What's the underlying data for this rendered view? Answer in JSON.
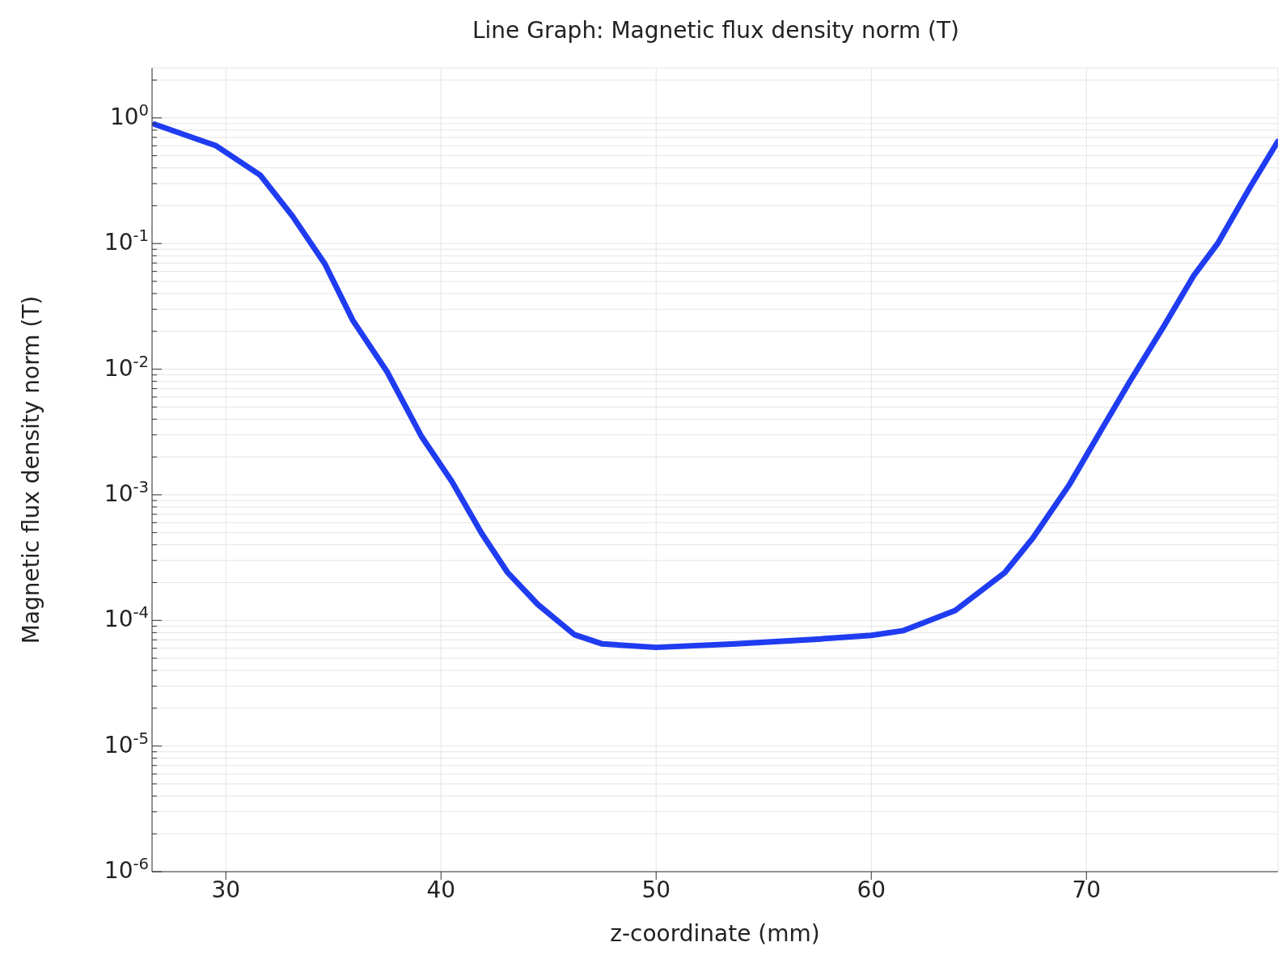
{
  "chart_data": {
    "type": "line",
    "title": "Line Graph: Magnetic flux density norm (T)",
    "xlabel": "z-coordinate (mm)",
    "ylabel": "Magnetic flux density norm (T)",
    "log": "y",
    "grid": true,
    "marker": "none",
    "line_style": "solid",
    "x": [
      26.7,
      29.55,
      31.6,
      33.1,
      34.6,
      35.9,
      37.5,
      39.1,
      40.5,
      41.9,
      43.1,
      44.5,
      46.2,
      47.5,
      50,
      53.7,
      57.5,
      60,
      61.5,
      63.9,
      66.2,
      67.5,
      69.2,
      70.7,
      72.0,
      73.6,
      75.0,
      76.1,
      77.6,
      78.9
    ],
    "series": [
      {
        "color": "#1f3cf0",
        "values": [
          0.89,
          0.6,
          0.35,
          0.165,
          0.069,
          0.0245,
          0.0095,
          0.0029,
          0.00128,
          0.00049,
          0.00024,
          0.000134,
          7.7e-05,
          6.5e-05,
          6.1e-05,
          6.5e-05,
          7.1e-05,
          7.6e-05,
          8.3e-05,
          0.00012,
          0.00024,
          0.00045,
          0.0012,
          0.0033,
          0.0079,
          0.022,
          0.056,
          0.1,
          0.28,
          0.65
        ]
      }
    ],
    "xlim": [
      26.57,
      78.9
    ],
    "xticks": [
      30,
      40,
      50,
      60,
      70
    ],
    "ylim": [
      1e-06,
      2.5
    ],
    "yticks": [
      {
        "value": 1e-06,
        "label": "10$^{-6}$"
      },
      {
        "value": 2e-06,
        "label": null
      },
      {
        "value": 3e-06,
        "label": null
      },
      {
        "value": 4e-06,
        "label": null
      },
      {
        "value": 5e-06,
        "label": null
      },
      {
        "value": 6e-06,
        "label": null
      },
      {
        "value": 7e-06,
        "label": null
      },
      {
        "value": 8e-06,
        "label": null
      },
      {
        "value": 9e-06,
        "label": null
      },
      {
        "value": 1e-05,
        "label": "10$^{-5}$"
      },
      {
        "value": 2e-05,
        "label": null
      },
      {
        "value": 3e-05,
        "label": null
      },
      {
        "value": 4e-05,
        "label": null
      },
      {
        "value": 5e-05,
        "label": null
      },
      {
        "value": 6e-05,
        "label": null
      },
      {
        "value": 7e-05,
        "label": null
      },
      {
        "value": 8e-05,
        "label": null
      },
      {
        "value": 9e-05,
        "label": null
      },
      {
        "value": 0.0001,
        "label": "10$^{-4}$"
      },
      {
        "value": 0.0002,
        "label": null
      },
      {
        "value": 0.0003,
        "label": null
      },
      {
        "value": 0.0004,
        "label": null
      },
      {
        "value": 0.0005,
        "label": null
      },
      {
        "value": 0.0006,
        "label": null
      },
      {
        "value": 0.0007,
        "label": null
      },
      {
        "value": 0.0008,
        "label": null
      },
      {
        "value": 0.0009,
        "label": null
      },
      {
        "value": 0.001,
        "label": "10$^{-3}$"
      },
      {
        "value": 0.002,
        "label": null
      },
      {
        "value": 0.003,
        "label": null
      },
      {
        "value": 0.004,
        "label": null
      },
      {
        "value": 0.005,
        "label": null
      },
      {
        "value": 0.006,
        "label": null
      },
      {
        "value": 0.007,
        "label": null
      },
      {
        "value": 0.008,
        "label": null
      },
      {
        "value": 0.009,
        "label": null
      },
      {
        "value": 0.01,
        "label": "10$^{-2}$"
      },
      {
        "value": 0.02,
        "label": null
      },
      {
        "value": 0.03,
        "label": null
      },
      {
        "value": 0.04,
        "label": null
      },
      {
        "value": 0.05,
        "label": null
      },
      {
        "value": 0.06,
        "label": null
      },
      {
        "value": 0.07,
        "label": null
      },
      {
        "value": 0.08,
        "label": null
      },
      {
        "value": 0.09,
        "label": null
      },
      {
        "value": 0.1,
        "label": "10$^{-1}$"
      },
      {
        "value": 0.2,
        "label": null
      },
      {
        "value": 0.3,
        "label": null
      },
      {
        "value": 0.4,
        "label": null
      },
      {
        "value": 0.5,
        "label": null
      },
      {
        "value": 0.6,
        "label": null
      },
      {
        "value": 0.7,
        "label": null
      },
      {
        "value": 0.8,
        "label": null
      },
      {
        "value": 0.9,
        "label": null
      },
      {
        "value": 1,
        "label": "10$^{0}$"
      },
      {
        "value": 2,
        "label": null
      }
    ]
  }
}
